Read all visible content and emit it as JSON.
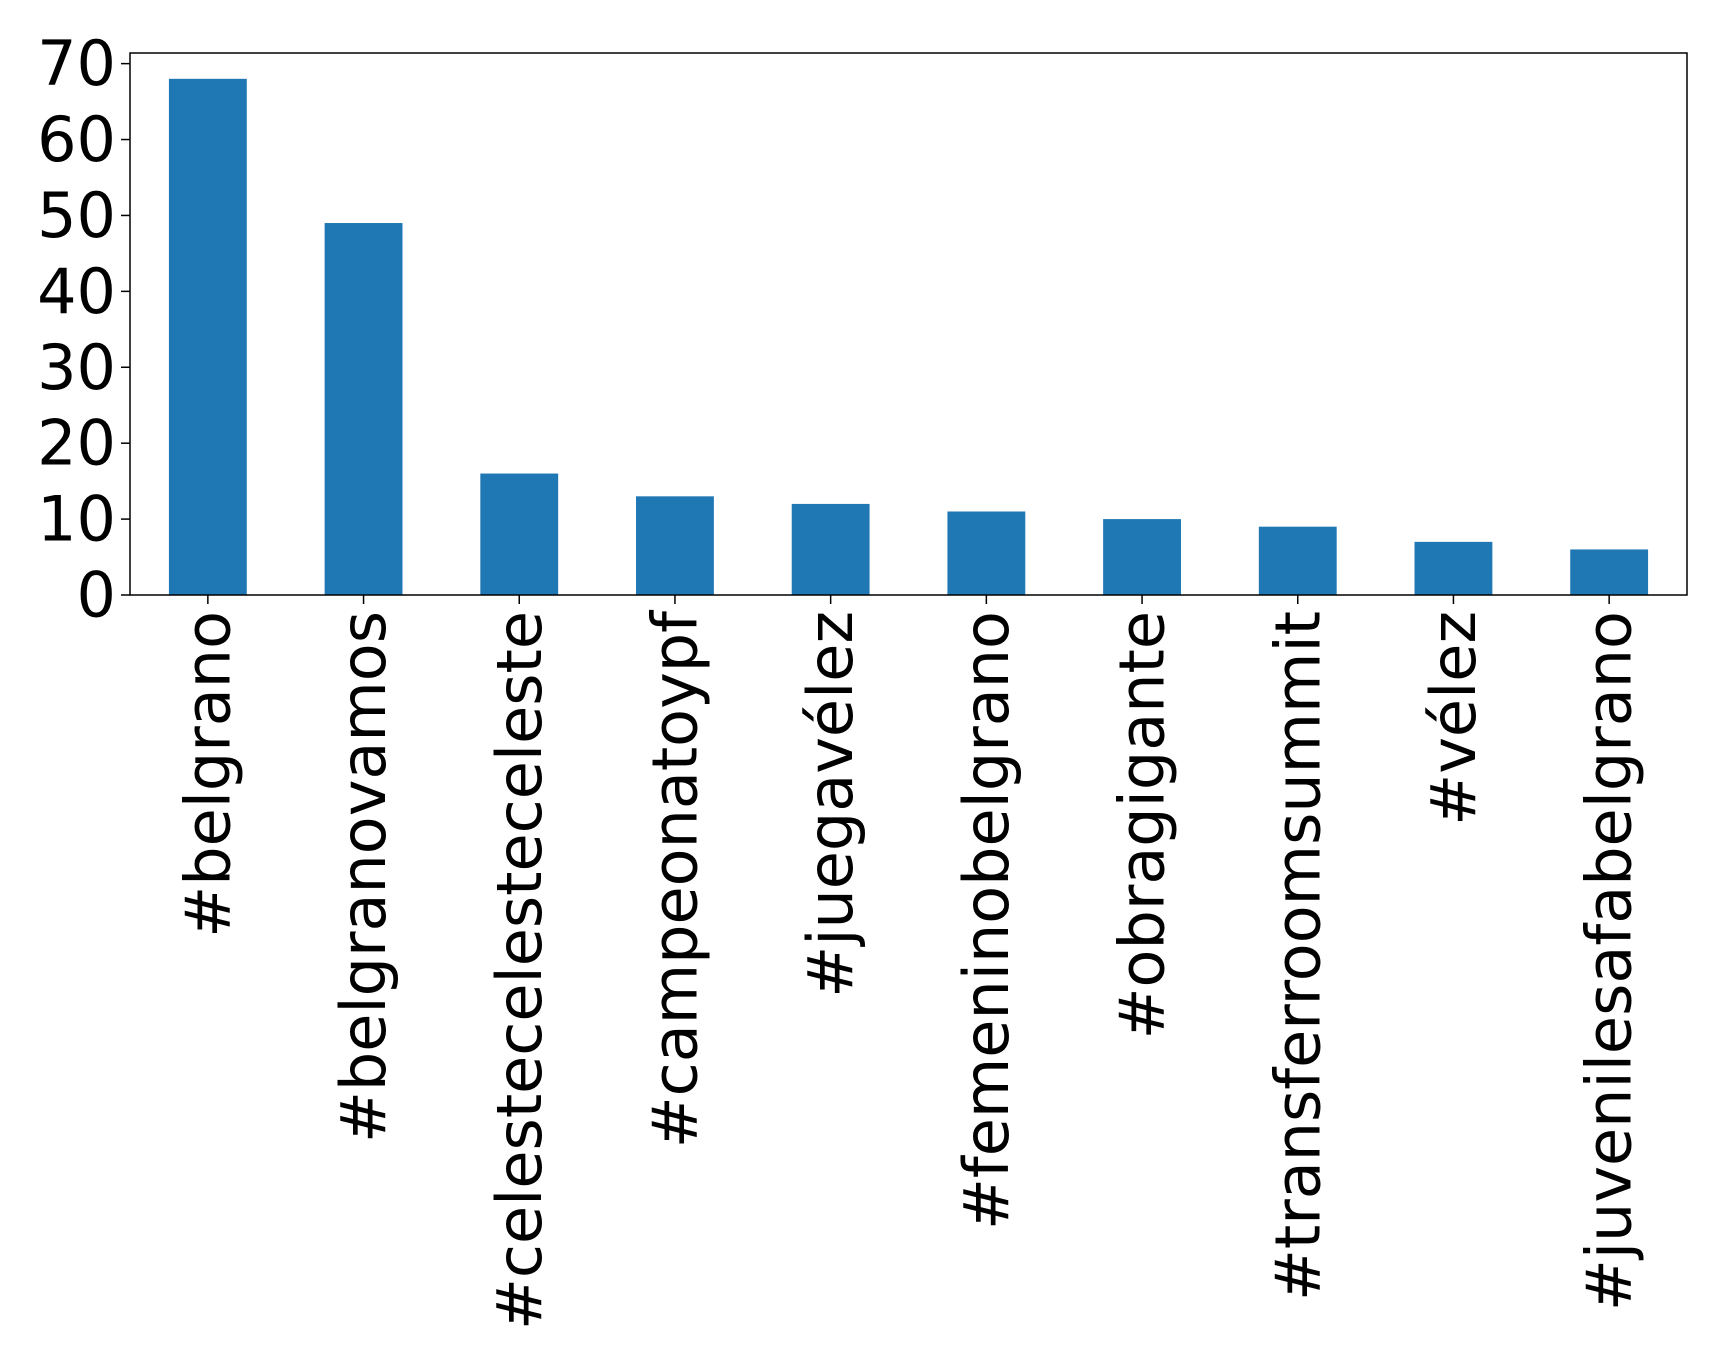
{
  "chart_data": {
    "type": "bar",
    "title": "",
    "xlabel": "",
    "ylabel": "",
    "categories": [
      "#belgrano",
      "#belgranovamos",
      "#celesteceleste­celeste",
      "#campeonatoypf",
      "#juegavélez",
      "#femeninobelgrano",
      "#obragigante",
      "#transferroomsummit",
      "#vélez",
      "#juvenilesafabelgrano"
    ],
    "values": [
      68,
      49,
      16,
      13,
      12,
      11,
      10,
      9,
      7,
      6
    ],
    "ylim": [
      0,
      71.4
    ],
    "yticks": [
      0,
      10,
      20,
      30,
      40,
      50,
      60,
      70
    ],
    "grid": false,
    "legend": "none",
    "bar_color": "#1f77b4"
  }
}
